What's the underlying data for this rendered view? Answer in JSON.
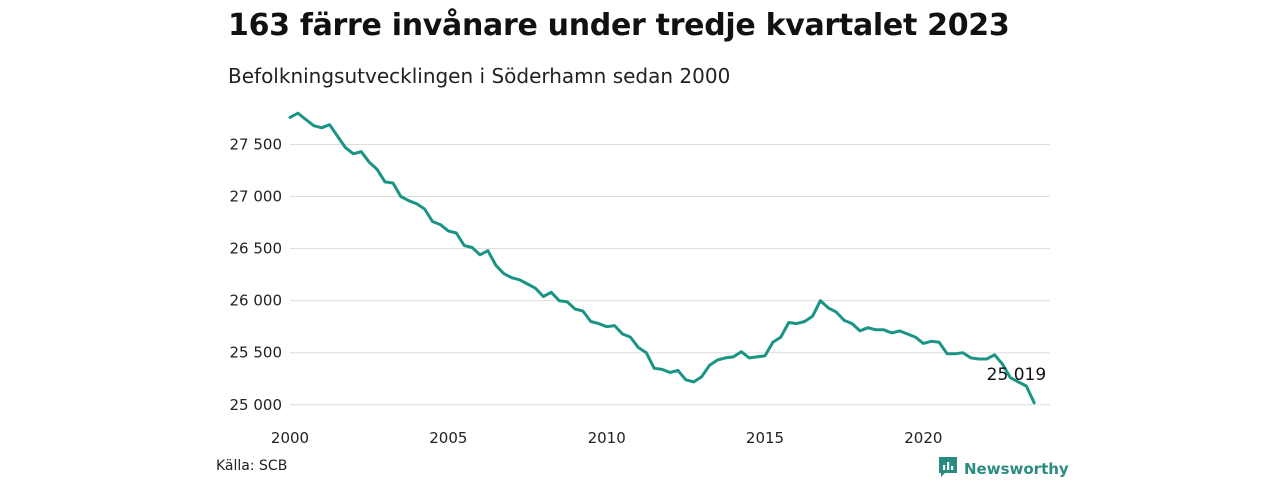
{
  "header": {
    "title": "163 färre invånare under tredje kvartalet 2023",
    "subtitle": "Befolkningsutvecklingen i Söderhamn sedan 2000"
  },
  "footer": {
    "source": "Källa: SCB",
    "brand": "Newsworthy",
    "brand_icon": "newsworthy-logo-icon"
  },
  "colors": {
    "line": "#1a9485",
    "grid": "#dddddd",
    "brand": "#2a8c80"
  },
  "chart_data": {
    "type": "line",
    "title": "163 färre invånare under tredje kvartalet 2023",
    "subtitle": "Befolkningsutvecklingen i Söderhamn sedan 2000",
    "xlabel": "",
    "ylabel": "",
    "xlim": [
      2000,
      2024
    ],
    "ylim": [
      24950,
      27850
    ],
    "x_ticks": [
      2000,
      2005,
      2010,
      2015,
      2020
    ],
    "y_ticks": [
      25000,
      25500,
      26000,
      26500,
      27000,
      27500
    ],
    "y_tick_labels": [
      "25 000",
      "25 500",
      "26 000",
      "26 500",
      "27 000",
      "27 500"
    ],
    "grid": true,
    "legend": "none",
    "end_label": "25 019",
    "series": [
      {
        "x": [
          2000.0,
          2000.25,
          2000.5,
          2000.75,
          2001.0,
          2001.25,
          2001.5,
          2001.75,
          2002.0,
          2002.25,
          2002.5,
          2002.75,
          2003.0,
          2003.25,
          2003.5,
          2003.75,
          2004.0,
          2004.25,
          2004.5,
          2004.75,
          2005.0,
          2005.25,
          2005.5,
          2005.75,
          2006.0,
          2006.25,
          2006.5,
          2006.75,
          2007.0,
          2007.25,
          2007.5,
          2007.75,
          2008.0,
          2008.25,
          2008.5,
          2008.75,
          2009.0,
          2009.25,
          2009.5,
          2009.75,
          2010.0,
          2010.25,
          2010.5,
          2010.75,
          2011.0,
          2011.25,
          2011.5,
          2011.75,
          2012.0,
          2012.25,
          2012.5,
          2012.75,
          2013.0,
          2013.25,
          2013.5,
          2013.75,
          2014.0,
          2014.25,
          2014.5,
          2014.75,
          2015.0,
          2015.25,
          2015.5,
          2015.75,
          2016.0,
          2016.25,
          2016.5,
          2016.75,
          2017.0,
          2017.25,
          2017.5,
          2017.75,
          2018.0,
          2018.25,
          2018.5,
          2018.75,
          2019.0,
          2019.25,
          2019.5,
          2019.75,
          2020.0,
          2020.25,
          2020.5,
          2020.75,
          2021.0,
          2021.25,
          2021.5,
          2021.75,
          2022.0,
          2022.25,
          2022.5,
          2022.75,
          2023.0,
          2023.25,
          2023.5
        ],
        "values": [
          27760,
          27800,
          27740,
          27680,
          27660,
          27690,
          27580,
          27470,
          27410,
          27430,
          27330,
          27260,
          27140,
          27130,
          27000,
          26960,
          26930,
          26880,
          26760,
          26730,
          26670,
          26650,
          26530,
          26510,
          26440,
          26480,
          26340,
          26260,
          26220,
          26200,
          26160,
          26120,
          26040,
          26080,
          26000,
          25990,
          25920,
          25900,
          25800,
          25780,
          25750,
          25760,
          25680,
          25650,
          25550,
          25500,
          25350,
          25340,
          25310,
          25330,
          25240,
          25220,
          25270,
          25380,
          25430,
          25450,
          25460,
          25510,
          25450,
          25460,
          25470,
          25600,
          25650,
          25790,
          25780,
          25800,
          25850,
          26000,
          25930,
          25890,
          25810,
          25780,
          25710,
          25740,
          25720,
          25720,
          25690,
          25710,
          25680,
          25650,
          25590,
          25610,
          25600,
          25490,
          25490,
          25500,
          25450,
          25440,
          25440,
          25480,
          25390,
          25260,
          25220,
          25180,
          25019
        ]
      }
    ]
  }
}
